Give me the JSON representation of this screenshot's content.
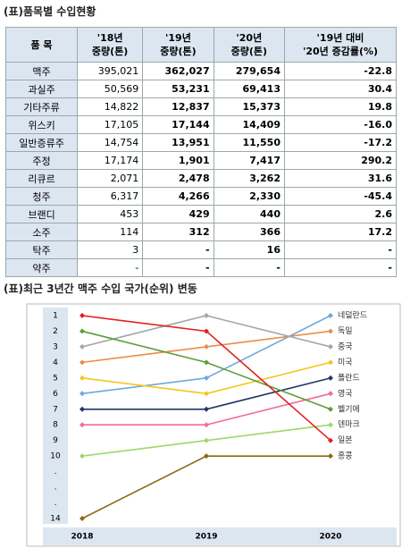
{
  "table_title": "(표)품목별 수입현황",
  "table": {
    "header": [
      "품 목",
      "'18년\n중량(톤)",
      "'19년\n중량(톤)",
      "'20년\n중량(톤)",
      "'19년 대비\n'20년 증감률(%)"
    ],
    "rows": [
      [
        "맥주",
        "395,021",
        "362,027",
        "279,654",
        "-22.8"
      ],
      [
        "과실주",
        "50,569",
        "53,231",
        "69,413",
        "30.4"
      ],
      [
        "기타주류",
        "14,822",
        "12,837",
        "15,373",
        "19.8"
      ],
      [
        "위스키",
        "17,105",
        "17,144",
        "14,409",
        "-16.0"
      ],
      [
        "일반증류주",
        "14,754",
        "13,951",
        "11,550",
        "-17.2"
      ],
      [
        "주정",
        "17,174",
        "1,901",
        "7,417",
        "290.2"
      ],
      [
        "리큐르",
        "2,071",
        "2,478",
        "3,262",
        "31.6"
      ],
      [
        "청주",
        "6,317",
        "4,266",
        "2,330",
        "-45.4"
      ],
      [
        "브랜디",
        "453",
        "429",
        "440",
        "2.6"
      ],
      [
        "소주",
        "114",
        "312",
        "366",
        "17.2"
      ],
      [
        "탁주",
        "3",
        "-",
        "16",
        "-"
      ],
      [
        "약주",
        "-",
        "-",
        "-",
        "-"
      ]
    ]
  },
  "chart_data": {
    "type": "line",
    "title": "(표)최근 3년간 맥주 수입 국가(순위) 변동",
    "categories": [
      "2018",
      "2019",
      "2020"
    ],
    "ylim": [
      1,
      14
    ],
    "y_inverted": true,
    "yticks": [
      1,
      2,
      3,
      4,
      5,
      6,
      7,
      8,
      9,
      10,
      {
        "value": 11,
        "label": "."
      },
      {
        "value": 12,
        "label": "."
      },
      {
        "value": 13,
        "label": "."
      },
      14
    ],
    "series": [
      {
        "name": "네덜란드",
        "color": "#6fa8dc",
        "values": [
          6,
          5,
          1
        ]
      },
      {
        "name": "독일",
        "color": "#ed8b45",
        "values": [
          4,
          3,
          2
        ]
      },
      {
        "name": "중국",
        "color": "#a6a6a6",
        "values": [
          3,
          1,
          3
        ]
      },
      {
        "name": "미국",
        "color": "#f5c518",
        "values": [
          5,
          6,
          4
        ]
      },
      {
        "name": "폴란드",
        "color": "#1f3864",
        "values": [
          7,
          7,
          5
        ]
      },
      {
        "name": "영국",
        "color": "#f06c9b",
        "values": [
          8,
          8,
          6
        ]
      },
      {
        "name": "벨기에",
        "color": "#5a9e3a",
        "values": [
          2,
          4,
          7
        ]
      },
      {
        "name": "덴마크",
        "color": "#9bd86b",
        "values": [
          10,
          9,
          8
        ]
      },
      {
        "name": "일본",
        "color": "#e02020",
        "values": [
          1,
          2,
          9
        ]
      },
      {
        "name": "홍콩",
        "color": "#8b6914",
        "values": [
          14,
          10,
          10
        ]
      }
    ]
  }
}
